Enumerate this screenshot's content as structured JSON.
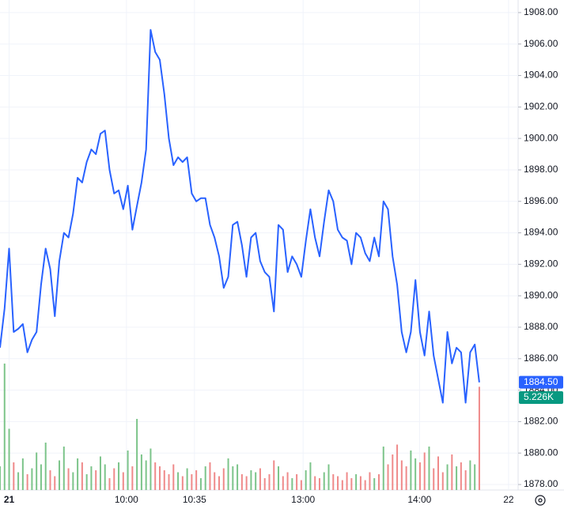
{
  "chart_data": {
    "type": "line",
    "xlim": [
      0,
      113.5
    ],
    "xticks": [
      {
        "value": 2,
        "label": "21"
      },
      {
        "value": 27.7,
        "label": "10:00"
      },
      {
        "value": 42.6,
        "label": "10:35"
      },
      {
        "value": 66.4,
        "label": "13:00"
      },
      {
        "value": 91.9,
        "label": "14:00"
      },
      {
        "value": 111.4,
        "label": "22"
      }
    ],
    "ylim": [
      1877.65,
      1908.8
    ],
    "yticks": [
      {
        "value": 1878,
        "label": "1878.00"
      },
      {
        "value": 1880,
        "label": "1880.00"
      },
      {
        "value": 1882,
        "label": "1882.00"
      },
      {
        "value": 1884,
        "label": "1884.00"
      },
      {
        "value": 1886,
        "label": "1886.00"
      },
      {
        "value": 1888,
        "label": "1888.00"
      },
      {
        "value": 1890,
        "label": "1890.00"
      },
      {
        "value": 1892,
        "label": "1892.00"
      },
      {
        "value": 1894,
        "label": "1894.00"
      },
      {
        "value": 1896,
        "label": "1896.00"
      },
      {
        "value": 1898,
        "label": "1898.00"
      },
      {
        "value": 1900,
        "label": "1900.00"
      },
      {
        "value": 1902,
        "label": "1902.00"
      },
      {
        "value": 1904,
        "label": "1904.00"
      },
      {
        "value": 1906,
        "label": "1906.00"
      },
      {
        "value": 1908,
        "label": "1908.00"
      }
    ],
    "grid": true,
    "series": [
      {
        "color": "#2962ff",
        "last_value_label": "1884.50",
        "values": [
          1886.7,
          1889.2,
          1893.0,
          1887.7,
          1887.9,
          1888.2,
          1886.4,
          1887.2,
          1887.7,
          1890.7,
          1893.0,
          1891.7,
          1888.7,
          1892.2,
          1894.0,
          1893.7,
          1895.2,
          1897.5,
          1897.2,
          1898.5,
          1899.3,
          1899.0,
          1900.3,
          1900.5,
          1898.0,
          1896.5,
          1896.7,
          1895.5,
          1897.0,
          1894.2,
          1895.7,
          1897.2,
          1899.3,
          1906.9,
          1905.5,
          1905.0,
          1902.8,
          1900.0,
          1898.3,
          1898.8,
          1898.5,
          1898.8,
          1896.5,
          1896.0,
          1896.2,
          1896.2,
          1894.5,
          1893.7,
          1892.5,
          1890.5,
          1891.2,
          1894.5,
          1894.7,
          1893.2,
          1891.2,
          1893.7,
          1894.0,
          1892.2,
          1891.5,
          1891.2,
          1889.0,
          1894.5,
          1894.2,
          1891.5,
          1892.5,
          1892.0,
          1891.2,
          1893.5,
          1895.5,
          1893.7,
          1892.5,
          1894.7,
          1896.7,
          1896.0,
          1894.2,
          1893.7,
          1893.5,
          1892.0,
          1894.0,
          1893.7,
          1892.7,
          1892.2,
          1893.7,
          1892.5,
          1896.0,
          1895.5,
          1892.5,
          1890.7,
          1887.7,
          1886.4,
          1887.7,
          1891.0,
          1887.7,
          1886.2,
          1889.0,
          1886.2,
          1884.7,
          1883.2,
          1887.7,
          1885.7,
          1886.7,
          1886.4,
          1883.2,
          1886.4,
          1886.9,
          1884.5
        ]
      },
      {
        "type": "volume",
        "up_color": "#7cc48a",
        "down_color": "#ef8a8a",
        "last_value_label": "5.226K",
        "label_color": "#089981",
        "values": [
          1.2,
          6.4,
          3.1,
          1.4,
          0.9,
          1.6,
          0.8,
          1.1,
          1.9,
          1.3,
          2.4,
          1.0,
          0.7,
          1.5,
          2.2,
          1.1,
          0.9,
          1.6,
          1.4,
          0.8,
          1.2,
          1.0,
          1.7,
          1.3,
          0.6,
          1.1,
          1.4,
          0.9,
          2.0,
          1.2,
          3.6,
          1.8,
          1.5,
          2.1,
          1.4,
          1.2,
          1.0,
          0.8,
          1.3,
          0.9,
          0.7,
          1.1,
          0.8,
          1.0,
          0.6,
          1.2,
          1.4,
          0.9,
          0.7,
          1.1,
          1.6,
          1.2,
          1.3,
          0.8,
          0.7,
          1.0,
          0.9,
          1.1,
          0.6,
          0.8,
          1.5,
          1.2,
          0.7,
          0.9,
          0.6,
          0.8,
          0.5,
          1.0,
          1.4,
          0.7,
          0.6,
          0.9,
          1.3,
          0.8,
          0.7,
          0.5,
          0.9,
          0.6,
          0.8,
          0.7,
          0.5,
          0.9,
          0.6,
          0.8,
          2.2,
          1.3,
          1.8,
          2.3,
          1.5,
          1.2,
          2.0,
          1.6,
          1.4,
          1.9,
          2.2,
          1.1,
          1.7,
          0.9,
          1.3,
          1.8,
          1.2,
          1.4,
          1.0,
          1.5,
          1.3,
          5.226
        ]
      }
    ]
  }
}
